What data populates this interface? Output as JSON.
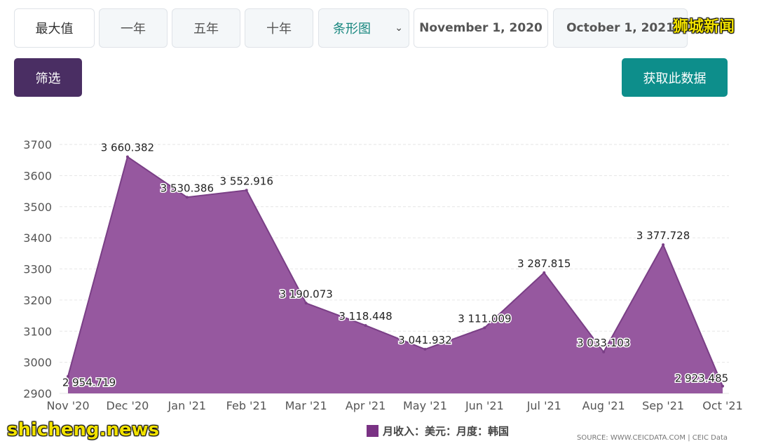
{
  "toolbar": {
    "range_buttons": [
      "最大值",
      "一年",
      "五年",
      "十年"
    ],
    "chart_type_select": "条形图",
    "start_date": "November 1, 2020",
    "end_date": "October 1, 2021",
    "filter_label": "筛选",
    "get_data_label": "获取此数据"
  },
  "watermarks": {
    "top": "狮城新闻",
    "bottom": "shicheng.news"
  },
  "source_text": "SOURCE: WWW.CEICDATA.COM | CEIC Data",
  "colors": {
    "area_fill": "#96589f",
    "area_stroke": "#7a3f86",
    "legend_swatch": "#7a3284"
  },
  "chart_data": {
    "type": "area",
    "categories": [
      "Nov '20",
      "Dec '20",
      "Jan '21",
      "Feb '21",
      "Mar '21",
      "Apr '21",
      "May '21",
      "Jun '21",
      "Jul '21",
      "Aug '21",
      "Sep '21",
      "Oct '21"
    ],
    "series": [
      {
        "name": "月收入：美元：月度：韩国",
        "values": [
          2954.719,
          3660.382,
          3530.386,
          3552.916,
          3190.073,
          3118.448,
          3041.932,
          3111.009,
          3287.815,
          3033.103,
          3377.728,
          2923.485
        ],
        "labels": [
          "2 954.719",
          "3 660.382",
          "3 530.386",
          "3 552.916",
          "3 190.073",
          "3 118.448",
          "3 041.932",
          "3 111.009",
          "3 287.815",
          "3 033.103",
          "3 377.728",
          "2 923.485"
        ]
      }
    ],
    "ylim": [
      2900,
      3700
    ],
    "yticks": [
      2900,
      3000,
      3100,
      3200,
      3300,
      3400,
      3500,
      3600,
      3700
    ],
    "grid": true,
    "legend_position": "bottom"
  }
}
